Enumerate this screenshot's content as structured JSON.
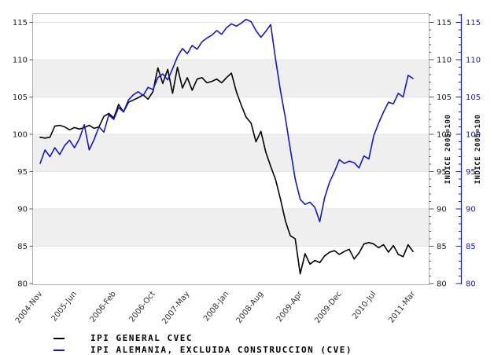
{
  "chart_data": {
    "type": "line",
    "title": "",
    "frequency": "monthly",
    "x_start_label": "2004-Nov",
    "x_end_label": "2011-Mar",
    "n_points": 77,
    "x_ticks": [
      {
        "label": "2004-Nov",
        "index": 0
      },
      {
        "label": "2005-Jun",
        "index": 7
      },
      {
        "label": "2006-Feb",
        "index": 15
      },
      {
        "label": "2006-Oct",
        "index": 23
      },
      {
        "label": "2007-May",
        "index": 30
      },
      {
        "label": "2008-Jan",
        "index": 38
      },
      {
        "label": "2008-Aug",
        "index": 45
      },
      {
        "label": "2009-Apr",
        "index": 53
      },
      {
        "label": "2009-Dec",
        "index": 61
      },
      {
        "label": "2010-Jul",
        "index": 68
      },
      {
        "label": "2011-Mar",
        "index": 76
      }
    ],
    "y_ticks": [
      80,
      85,
      90,
      95,
      100,
      105,
      110,
      115
    ],
    "ylim": [
      80,
      116
    ],
    "right_axis_title": "INDICE 2005=100",
    "right_axis2_title": "INDICE 2005=100",
    "shaded_bands": [
      [
        85,
        90
      ],
      [
        95,
        100
      ],
      [
        105,
        110
      ]
    ],
    "colors": {
      "band": "#efefef",
      "grid": "#e4e4e4",
      "border": "#b0b0b0",
      "tick_text": "#1a1a1a",
      "x_tick_text": "#303030",
      "axis2_blue": "#1616cb"
    },
    "series": [
      {
        "name": "IPI GENERAL CVEC",
        "color": "#000000",
        "values": [
          99.6,
          99.5,
          99.6,
          101.1,
          101.2,
          101.0,
          100.6,
          100.9,
          100.7,
          100.9,
          101.2,
          100.8,
          101.0,
          102.4,
          102.8,
          102.2,
          104.0,
          103.0,
          104.3,
          104.6,
          104.9,
          105.3,
          104.7,
          105.7,
          108.9,
          106.8,
          108.7,
          105.5,
          109.0,
          106.2,
          107.6,
          105.9,
          107.4,
          107.6,
          106.9,
          107.1,
          107.4,
          106.9,
          107.6,
          108.2,
          105.7,
          103.9,
          102.3,
          101.5,
          99.0,
          100.4,
          97.6,
          95.7,
          93.9,
          91.3,
          88.4,
          86.4,
          86.0,
          81.3,
          84.0,
          82.6,
          83.1,
          82.8,
          83.7,
          84.2,
          84.4,
          83.9,
          84.3,
          84.6,
          83.3,
          84.1,
          85.3,
          85.5,
          85.3,
          84.8,
          85.2,
          84.2,
          85.1,
          83.9,
          83.6,
          85.2,
          84.3
        ]
      },
      {
        "name": "IPI ALEMANIA, EXCLUIDA CONSTRUCCION (CVE)",
        "color": "#1616cb",
        "values": [
          96.1,
          97.9,
          97.0,
          98.2,
          97.3,
          98.5,
          99.2,
          98.2,
          99.4,
          101.3,
          97.9,
          99.3,
          101.0,
          100.3,
          102.6,
          102.0,
          103.6,
          103.0,
          104.6,
          105.3,
          105.7,
          105.2,
          106.3,
          106.0,
          107.6,
          108.1,
          107.3,
          108.8,
          110.4,
          111.5,
          110.8,
          111.9,
          111.4,
          112.4,
          112.9,
          113.3,
          113.9,
          113.4,
          114.3,
          114.8,
          114.5,
          114.9,
          115.4,
          115.1,
          113.9,
          113.0,
          113.8,
          114.7,
          110.0,
          105.8,
          102.2,
          98.0,
          94.0,
          91.3,
          90.6,
          90.9,
          90.2,
          88.3,
          91.5,
          93.6,
          95.0,
          96.6,
          96.1,
          96.4,
          96.2,
          95.5,
          97.1,
          96.7,
          99.8,
          101.5,
          103.0,
          104.3,
          104.1,
          105.5,
          105.0,
          107.9,
          107.5
        ]
      }
    ],
    "legend_position": "bottom-left"
  }
}
